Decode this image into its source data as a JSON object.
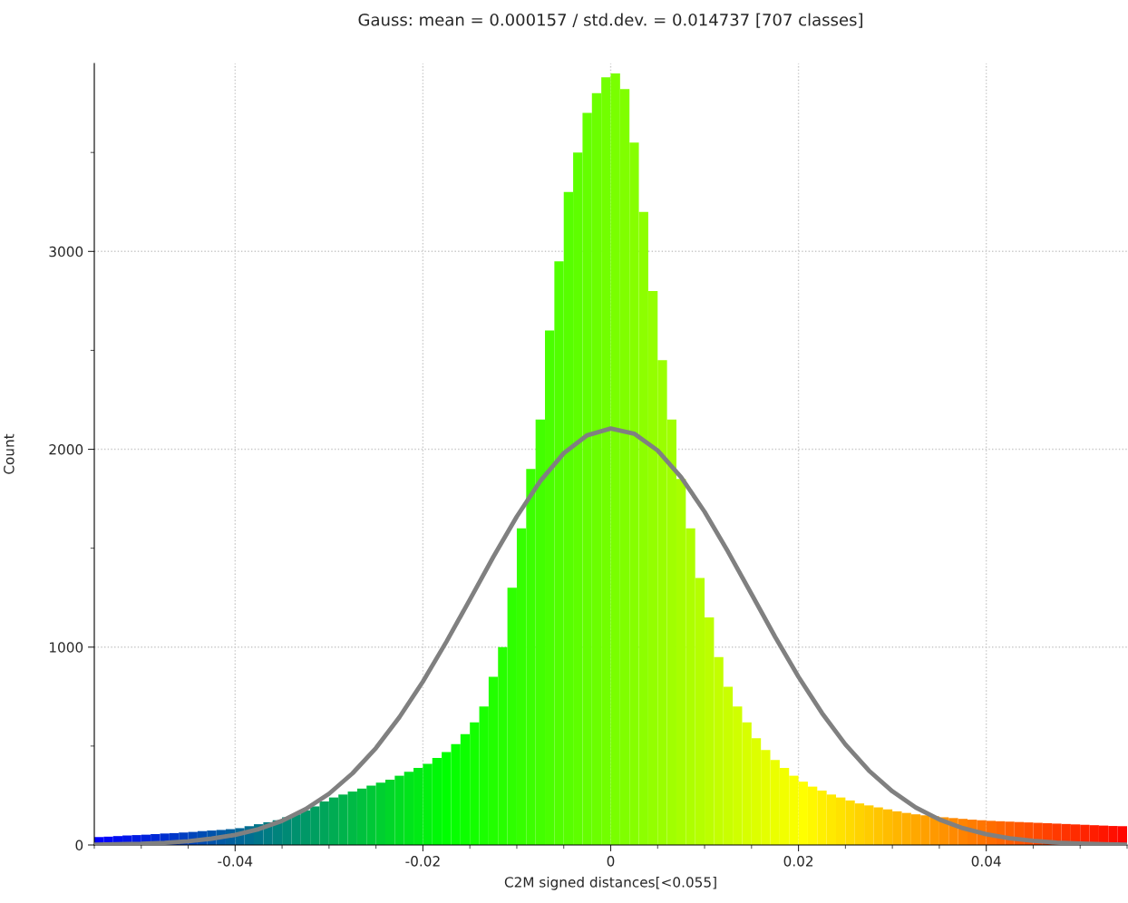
{
  "chart_data": {
    "type": "histogram",
    "title": "Gauss: mean = 0.000157 / std.dev. = 0.014737 [707 classes]",
    "xlabel": "C2M signed distances[<0.055]",
    "ylabel": "Count",
    "bins": [
      -0.055,
      -0.054,
      -0.053,
      -0.052,
      -0.051,
      -0.05,
      -0.049,
      -0.048,
      -0.047,
      -0.046,
      -0.045,
      -0.044,
      -0.043,
      -0.042,
      -0.041,
      -0.04,
      -0.039,
      -0.038,
      -0.037,
      -0.036,
      -0.035,
      -0.034,
      -0.033,
      -0.032,
      -0.031,
      -0.03,
      -0.029,
      -0.028,
      -0.027,
      -0.026,
      -0.025,
      -0.024,
      -0.023,
      -0.022,
      -0.021,
      -0.02,
      -0.019,
      -0.018,
      -0.017,
      -0.016,
      -0.015,
      -0.014,
      -0.013,
      -0.012,
      -0.011,
      -0.01,
      -0.009,
      -0.008,
      -0.007,
      -0.006,
      -0.005,
      -0.004,
      -0.003,
      -0.002,
      -0.001,
      0,
      0.001,
      0.002,
      0.003,
      0.004,
      0.005,
      0.006,
      0.007,
      0.008,
      0.009,
      0.01,
      0.011,
      0.012,
      0.013,
      0.014,
      0.015,
      0.016,
      0.017,
      0.018,
      0.019,
      0.02,
      0.021,
      0.022,
      0.023,
      0.024,
      0.025,
      0.026,
      0.027,
      0.028,
      0.029,
      0.03,
      0.031,
      0.032,
      0.033,
      0.034,
      0.035,
      0.036,
      0.037,
      0.038,
      0.039,
      0.04,
      0.041,
      0.042,
      0.043,
      0.044,
      0.045,
      0.046,
      0.047,
      0.048,
      0.049,
      0.05,
      0.051,
      0.052,
      0.053,
      0.054,
      0.055
    ],
    "values": [
      40,
      42,
      45,
      48,
      50,
      52,
      55,
      58,
      60,
      63,
      66,
      70,
      73,
      76,
      80,
      85,
      95,
      105,
      115,
      125,
      140,
      155,
      175,
      195,
      220,
      240,
      255,
      270,
      285,
      300,
      315,
      330,
      350,
      370,
      390,
      410,
      440,
      470,
      510,
      560,
      620,
      700,
      850,
      1000,
      1300,
      1600,
      1900,
      2150,
      2600,
      2950,
      3300,
      3500,
      3700,
      3800,
      3880,
      3900,
      3820,
      3550,
      3200,
      2800,
      2450,
      2150,
      1850,
      1600,
      1350,
      1150,
      950,
      800,
      700,
      620,
      540,
      480,
      430,
      390,
      350,
      320,
      295,
      275,
      255,
      240,
      225,
      210,
      200,
      190,
      180,
      170,
      162,
      155,
      150,
      145,
      140,
      136,
      132,
      128,
      125,
      122,
      120,
      118,
      116,
      114,
      112,
      110,
      108,
      106,
      104,
      102,
      100,
      98,
      96,
      95
    ],
    "colors": [
      "#0000ff",
      "#0007f8",
      "#000ef1",
      "#0015ea",
      "#001ce3",
      "#0022dd",
      "#0029d6",
      "#0030cf",
      "#0037c8",
      "#003ec1",
      "#0045ba",
      "#004cb3",
      "#0053ac",
      "#005aa5",
      "#00609f",
      "#006798",
      "#006e91",
      "#00758a",
      "#007c83",
      "#00837c",
      "#008a75",
      "#00916e",
      "#009867",
      "#009f60",
      "#00a55a",
      "#00ac53",
      "#00b34c",
      "#00ba45",
      "#00c13e",
      "#00c837",
      "#00cf30",
      "#00d629",
      "#00dd22",
      "#00e41b",
      "#00ea15",
      "#00f10e",
      "#00f807",
      "#00ff00",
      "#07ff00",
      "#0dff00",
      "#14ff00",
      "#1bff00",
      "#22ff00",
      "#28ff00",
      "#2fff00",
      "#36ff00",
      "#3cff00",
      "#43ff00",
      "#4aff00",
      "#51ff00",
      "#57ff00",
      "#5eff00",
      "#65ff00",
      "#6bff00",
      "#72ff00",
      "#79ff00",
      "#80ff00",
      "#86ff00",
      "#8dff00",
      "#94ff00",
      "#9aff00",
      "#a1ff00",
      "#a8ff00",
      "#aeff00",
      "#b5ff00",
      "#bcff00",
      "#c3ff00",
      "#c9ff00",
      "#d0ff00",
      "#d7ff00",
      "#ddff00",
      "#e4ff00",
      "#ebff00",
      "#f2ff00",
      "#f8ff00",
      "#ffff00",
      "#fff800",
      "#fff000",
      "#ffe900",
      "#ffe200",
      "#ffdb00",
      "#ffd300",
      "#ffcc00",
      "#ffc500",
      "#ffbd00",
      "#ffb600",
      "#ffaf00",
      "#ffa800",
      "#ffa000",
      "#ff9900",
      "#ff9200",
      "#ff8a00",
      "#ff8300",
      "#ff7c00",
      "#ff7500",
      "#ff6d00",
      "#ff6600",
      "#ff5f00",
      "#ff5700",
      "#ff5000",
      "#ff4900",
      "#ff4200",
      "#ff3a00",
      "#ff3300",
      "#ff2c00",
      "#ff2400",
      "#ff1d00",
      "#ff1600",
      "#ff0f00",
      "#ff0700"
    ],
    "series": [
      {
        "type": "line",
        "color": "#808080",
        "x": [
          -0.055,
          -0.0525,
          -0.05,
          -0.0475,
          -0.045,
          -0.0425,
          -0.04,
          -0.0375,
          -0.035,
          -0.0325,
          -0.03,
          -0.0275,
          -0.025,
          -0.0225,
          -0.02,
          -0.0175,
          -0.015,
          -0.0125,
          -0.01,
          -0.0075,
          -0.005,
          -0.0025,
          0,
          0.0025,
          0.005,
          0.0075,
          0.01,
          0.0125,
          0.015,
          0.0175,
          0.02,
          0.0225,
          0.025,
          0.0275,
          0.03,
          0.0325,
          0.035,
          0.0375,
          0.04,
          0.0425,
          0.045,
          0.0475,
          0.05,
          0.0525,
          0.055
        ],
        "values": [
          2,
          4,
          6,
          11,
          19,
          32,
          51,
          80,
          122,
          181,
          259,
          362,
          490,
          646,
          826,
          1027,
          1240,
          1456,
          1660,
          1839,
          1980,
          2071,
          2105,
          2079,
          1994,
          1859,
          1684,
          1482,
          1268,
          1053,
          850,
          667,
          508,
          376,
          271,
          189,
          129,
          85,
          54,
          34,
          21,
          12,
          7,
          4,
          2
        ]
      }
    ],
    "xlim": [
      -0.055,
      0.055
    ],
    "ylim": [
      0,
      3950
    ],
    "xticks": [
      -0.04,
      -0.02,
      0,
      0.02,
      0.04
    ],
    "yticks": [
      0,
      1000,
      2000,
      3000
    ],
    "grid": true,
    "line_style": "solid",
    "marker": "none"
  }
}
